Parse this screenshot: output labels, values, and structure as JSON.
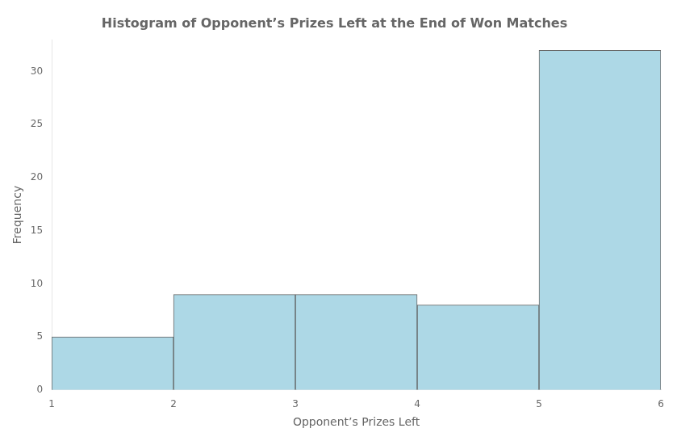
{
  "chart_data": {
    "type": "histogram",
    "title": "Histogram of Opponent’s Prizes Left at the End of Won Matches",
    "x_label": "Opponent’s Prizes Left",
    "y_label": "Frequency",
    "bins": [
      1,
      2,
      3,
      4,
      5,
      6
    ],
    "values": [
      5,
      9,
      9,
      8,
      32
    ],
    "color": "#add8e6",
    "xlim": [
      1,
      6
    ],
    "ylim": [
      0,
      33
    ],
    "xticks": [
      1,
      2,
      3,
      4,
      5,
      6
    ],
    "yticks": [
      0,
      5,
      10,
      15,
      20,
      25,
      30
    ],
    "grid": false
  }
}
